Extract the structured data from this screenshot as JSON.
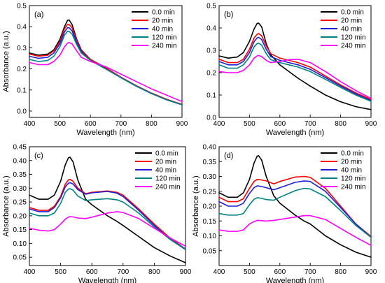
{
  "chart_data": [
    {
      "type": "line",
      "panel_label": "(a)",
      "xlabel": "Wavelength (nm)",
      "ylabel": "Absorbance (a.u.)",
      "xlim": [
        400,
        900
      ],
      "ylim": [
        -0.03,
        0.5
      ],
      "xticks": [
        400,
        500,
        600,
        700,
        800,
        900
      ],
      "yticks": [
        0.0,
        0.1,
        0.2,
        0.3,
        0.4,
        0.5
      ],
      "ytick_labels": [
        "0.0",
        "0.1",
        "0.2",
        "0.3",
        "0.4",
        "0.5"
      ],
      "legend_position": "top-right",
      "x": [
        400,
        430,
        460,
        480,
        500,
        515,
        525,
        530,
        540,
        555,
        570,
        600,
        650,
        700,
        750,
        800,
        850,
        900
      ],
      "series": [
        {
          "name": "0.0 min",
          "color": "#000000",
          "values": [
            0.275,
            0.265,
            0.27,
            0.29,
            0.34,
            0.4,
            0.43,
            0.432,
            0.41,
            0.34,
            0.29,
            0.245,
            0.205,
            0.16,
            0.12,
            0.085,
            0.055,
            0.03
          ]
        },
        {
          "name": "20 min",
          "color": "#ff0000",
          "values": [
            0.27,
            0.26,
            0.265,
            0.285,
            0.33,
            0.39,
            0.41,
            0.41,
            0.395,
            0.335,
            0.285,
            0.245,
            0.205,
            0.16,
            0.12,
            0.085,
            0.055,
            0.032
          ]
        },
        {
          "name": "40 min",
          "color": "#1f1fd6",
          "values": [
            0.26,
            0.25,
            0.255,
            0.275,
            0.32,
            0.375,
            0.395,
            0.395,
            0.38,
            0.325,
            0.28,
            0.24,
            0.2,
            0.158,
            0.118,
            0.083,
            0.053,
            0.03
          ]
        },
        {
          "name": "120 min",
          "color": "#008080",
          "values": [
            0.245,
            0.235,
            0.24,
            0.26,
            0.305,
            0.36,
            0.378,
            0.378,
            0.365,
            0.315,
            0.275,
            0.24,
            0.2,
            0.158,
            0.118,
            0.083,
            0.053,
            0.03
          ]
        },
        {
          "name": "240 min",
          "color": "#ff00ff",
          "values": [
            0.23,
            0.22,
            0.22,
            0.235,
            0.265,
            0.305,
            0.322,
            0.325,
            0.318,
            0.285,
            0.255,
            0.235,
            0.21,
            0.175,
            0.14,
            0.105,
            0.075,
            0.045
          ]
        }
      ]
    },
    {
      "type": "line",
      "panel_label": "(b)",
      "xlabel": "Wavelength (nm)",
      "ylabel": "",
      "xlim": [
        400,
        900
      ],
      "ylim": [
        0.0,
        0.5
      ],
      "xticks": [
        400,
        500,
        600,
        700,
        800,
        900
      ],
      "yticks": [
        0.0,
        0.1,
        0.2,
        0.3,
        0.4,
        0.5
      ],
      "ytick_labels": [
        "0.0",
        "0.1",
        "0.2",
        "0.3",
        "0.4",
        "0.5"
      ],
      "legend_position": "top-right",
      "x": [
        400,
        430,
        460,
        480,
        500,
        515,
        525,
        530,
        540,
        555,
        570,
        600,
        630,
        660,
        700,
        750,
        800,
        850,
        900
      ],
      "series": [
        {
          "name": "0.0 min",
          "color": "#000000",
          "values": [
            0.275,
            0.265,
            0.27,
            0.29,
            0.34,
            0.395,
            0.42,
            0.422,
            0.405,
            0.33,
            0.28,
            0.235,
            0.205,
            0.175,
            0.14,
            0.1,
            0.07,
            0.048,
            0.035
          ]
        },
        {
          "name": "20 min",
          "color": "#ff0000",
          "values": [
            0.26,
            0.245,
            0.245,
            0.26,
            0.305,
            0.355,
            0.372,
            0.375,
            0.365,
            0.32,
            0.285,
            0.265,
            0.255,
            0.245,
            0.225,
            0.185,
            0.145,
            0.11,
            0.08
          ]
        },
        {
          "name": "40 min",
          "color": "#1f1fd6",
          "values": [
            0.25,
            0.235,
            0.235,
            0.25,
            0.29,
            0.338,
            0.355,
            0.358,
            0.348,
            0.305,
            0.272,
            0.255,
            0.245,
            0.235,
            0.215,
            0.178,
            0.14,
            0.105,
            0.075
          ]
        },
        {
          "name": "120 min",
          "color": "#008080",
          "values": [
            0.235,
            0.22,
            0.22,
            0.235,
            0.27,
            0.315,
            0.33,
            0.332,
            0.323,
            0.285,
            0.258,
            0.245,
            0.235,
            0.225,
            0.205,
            0.17,
            0.134,
            0.1,
            0.072
          ]
        },
        {
          "name": "240 min",
          "color": "#ff00ff",
          "values": [
            0.205,
            0.2,
            0.2,
            0.21,
            0.235,
            0.265,
            0.275,
            0.277,
            0.272,
            0.255,
            0.245,
            0.25,
            0.258,
            0.26,
            0.245,
            0.205,
            0.16,
            0.12,
            0.085
          ]
        }
      ]
    },
    {
      "type": "line",
      "panel_label": "(c)",
      "xlabel": "Wavelength (nm)",
      "ylabel": "Absorbance (a.u.)",
      "xlim": [
        400,
        900
      ],
      "ylim": [
        0.02,
        0.45
      ],
      "xticks": [
        400,
        500,
        600,
        700,
        800,
        900
      ],
      "yticks": [
        0.05,
        0.1,
        0.15,
        0.2,
        0.25,
        0.3,
        0.35,
        0.4,
        0.45
      ],
      "ytick_labels": [
        "0.05",
        "0.10",
        "0.15",
        "0.20",
        "0.25",
        "0.30",
        "0.35",
        "0.40",
        "0.45"
      ],
      "legend_position": "top-right",
      "x": [
        400,
        430,
        460,
        480,
        500,
        515,
        525,
        530,
        540,
        555,
        580,
        600,
        650,
        680,
        700,
        750,
        800,
        850,
        900
      ],
      "series": [
        {
          "name": "0.0 min",
          "color": "#000000",
          "values": [
            0.275,
            0.26,
            0.26,
            0.275,
            0.325,
            0.385,
            0.41,
            0.412,
            0.395,
            0.33,
            0.26,
            0.24,
            0.2,
            0.18,
            0.165,
            0.125,
            0.085,
            0.055,
            0.03
          ]
        },
        {
          "name": "20 min",
          "color": "#ff0000",
          "values": [
            0.23,
            0.22,
            0.22,
            0.235,
            0.27,
            0.315,
            0.33,
            0.332,
            0.325,
            0.3,
            0.28,
            0.285,
            0.29,
            0.285,
            0.275,
            0.225,
            0.17,
            0.12,
            0.08
          ]
        },
        {
          "name": "40 min",
          "color": "#1f1fd6",
          "values": [
            0.225,
            0.215,
            0.215,
            0.23,
            0.265,
            0.305,
            0.318,
            0.32,
            0.315,
            0.295,
            0.278,
            0.283,
            0.288,
            0.282,
            0.27,
            0.22,
            0.165,
            0.115,
            0.078
          ]
        },
        {
          "name": "120 min",
          "color": "#008080",
          "values": [
            0.21,
            0.2,
            0.2,
            0.21,
            0.245,
            0.285,
            0.297,
            0.298,
            0.293,
            0.272,
            0.255,
            0.258,
            0.262,
            0.258,
            0.25,
            0.21,
            0.16,
            0.115,
            0.08
          ]
        },
        {
          "name": "240 min",
          "color": "#ff00ff",
          "values": [
            0.155,
            0.148,
            0.145,
            0.15,
            0.17,
            0.188,
            0.195,
            0.197,
            0.196,
            0.192,
            0.19,
            0.195,
            0.21,
            0.215,
            0.212,
            0.19,
            0.155,
            0.12,
            0.09
          ]
        }
      ]
    },
    {
      "type": "line",
      "panel_label": "(d)",
      "xlabel": "Wavelength (nm)",
      "ylabel": "Absorbance (a.u.)",
      "xlim": [
        400,
        900
      ],
      "ylim": [
        0.0,
        0.4
      ],
      "xticks": [
        400,
        500,
        600,
        700,
        800,
        900
      ],
      "yticks": [
        0.05,
        0.1,
        0.15,
        0.2,
        0.25,
        0.3,
        0.35,
        0.4
      ],
      "ytick_labels": [
        "0.05",
        "0.10",
        "0.15",
        "0.20",
        "0.25",
        "0.30",
        "0.35",
        "0.40"
      ],
      "legend_position": "top-right",
      "x": [
        400,
        430,
        460,
        480,
        500,
        515,
        525,
        530,
        540,
        555,
        580,
        600,
        650,
        680,
        700,
        750,
        800,
        850,
        900
      ],
      "series": [
        {
          "name": "0.0 min",
          "color": "#000000",
          "values": [
            0.245,
            0.23,
            0.23,
            0.245,
            0.29,
            0.345,
            0.368,
            0.37,
            0.355,
            0.3,
            0.235,
            0.21,
            0.17,
            0.15,
            0.14,
            0.1,
            0.07,
            0.045,
            0.028
          ]
        },
        {
          "name": "20 min",
          "color": "#ff0000",
          "values": [
            0.23,
            0.215,
            0.215,
            0.225,
            0.26,
            0.283,
            0.29,
            0.29,
            0.288,
            0.285,
            0.275,
            0.283,
            0.298,
            0.3,
            0.297,
            0.26,
            0.2,
            0.14,
            0.098
          ]
        },
        {
          "name": "40 min",
          "color": "#1f1fd6",
          "values": [
            0.215,
            0.2,
            0.2,
            0.21,
            0.243,
            0.262,
            0.268,
            0.268,
            0.266,
            0.262,
            0.255,
            0.262,
            0.28,
            0.285,
            0.283,
            0.25,
            0.195,
            0.14,
            0.095
          ]
        },
        {
          "name": "120 min",
          "color": "#008080",
          "values": [
            0.175,
            0.17,
            0.17,
            0.175,
            0.205,
            0.223,
            0.228,
            0.228,
            0.226,
            0.222,
            0.22,
            0.23,
            0.252,
            0.26,
            0.258,
            0.232,
            0.185,
            0.135,
            0.095
          ]
        },
        {
          "name": "240 min",
          "color": "#ff00ff",
          "values": [
            0.12,
            0.115,
            0.115,
            0.12,
            0.14,
            0.148,
            0.152,
            0.152,
            0.151,
            0.15,
            0.152,
            0.155,
            0.163,
            0.168,
            0.168,
            0.155,
            0.125,
            0.095,
            0.068
          ]
        }
      ]
    }
  ]
}
